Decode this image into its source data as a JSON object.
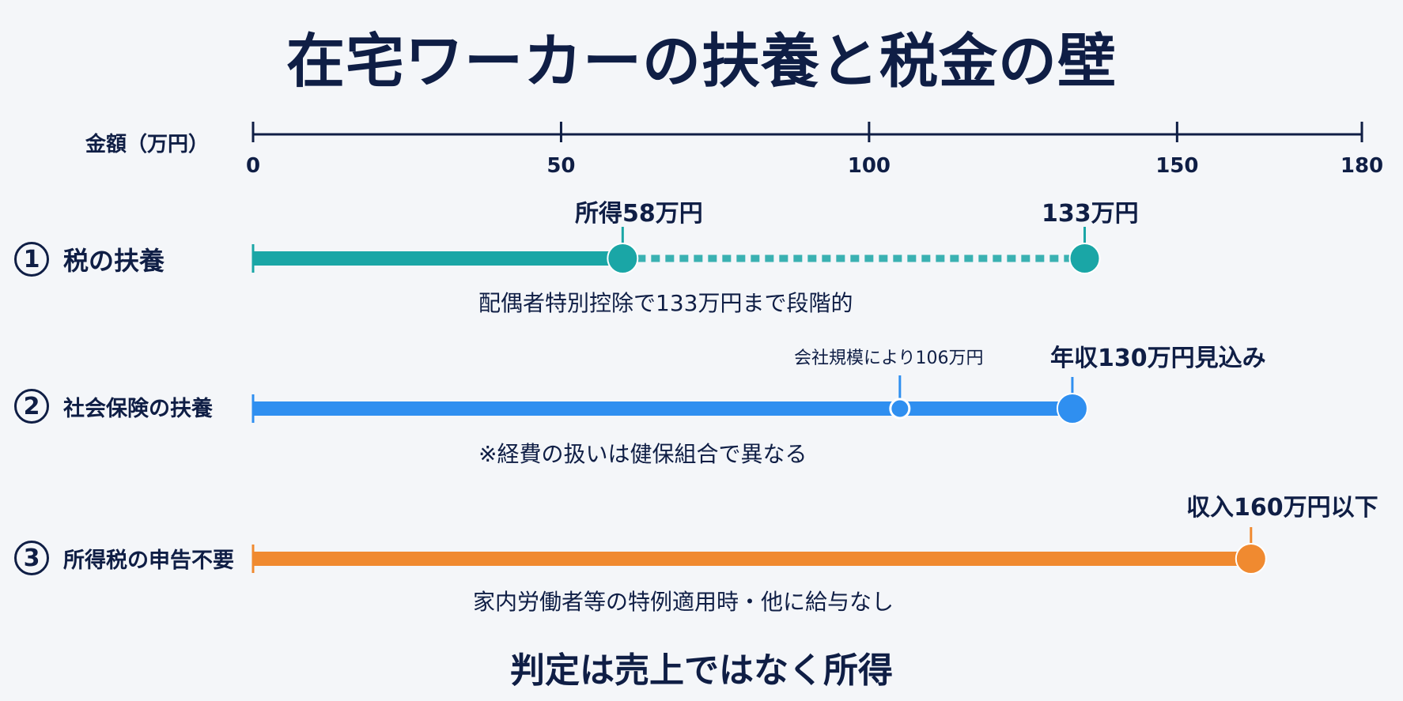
{
  "title": "在宅ワーカーの扶養と税金の壁",
  "axis": {
    "label": "金額（万円）",
    "ticks": [
      0,
      50,
      100,
      150,
      180
    ],
    "max": 180
  },
  "rows": [
    {
      "number": "1",
      "label": "税の扶養",
      "color": "#1aa6a6",
      "start": 0,
      "solid_end": 60,
      "dotted_end": 135,
      "markers": [
        {
          "value": 60,
          "label": "所得58万円",
          "style": "large"
        },
        {
          "value": 135,
          "label": "133万円",
          "style": "large"
        }
      ],
      "note": "配偶者特別控除で133万円まで段階的"
    },
    {
      "number": "2",
      "label": "社会保険の扶養",
      "color": "#2f8ff0",
      "start": 0,
      "solid_end": 133,
      "markers": [
        {
          "value": 105,
          "label": "会社規模により106万円",
          "style": "small"
        },
        {
          "value": 133,
          "label": "年収130万円見込み",
          "style": "large"
        }
      ],
      "note": "※経費の扱いは健保組合で異なる"
    },
    {
      "number": "3",
      "label": "所得税の申告不要",
      "color": "#f08a30",
      "start": 0,
      "solid_end": 162,
      "markers": [
        {
          "value": 162,
          "label": "収入160万円以下",
          "style": "large"
        }
      ],
      "note": "家内労働者等の特例適用時・他に給与なし"
    }
  ],
  "footer": "判定は売上ではなく所得",
  "colors": {
    "navy": "#0f1e45",
    "teal": "#1aa6a6",
    "blue": "#2f8ff0",
    "orange": "#f08a30"
  }
}
